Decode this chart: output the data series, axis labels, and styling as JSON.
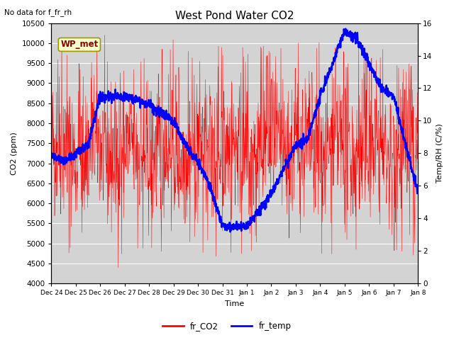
{
  "title": "West Pond Water CO2",
  "no_data_text": "No data for f_fr_rh",
  "xlabel": "Time",
  "ylabel_left": "CO2 (ppm)",
  "ylabel_right": "Temp/RH (C/%)",
  "ylim_left": [
    4000,
    10500
  ],
  "ylim_right": [
    0,
    16
  ],
  "yticks_left": [
    4000,
    4500,
    5000,
    5500,
    6000,
    6500,
    7000,
    7500,
    8000,
    8500,
    9000,
    9500,
    10000,
    10500
  ],
  "yticks_right": [
    0,
    2,
    4,
    6,
    8,
    10,
    12,
    14,
    16
  ],
  "legend_labels": [
    "fr_CO2",
    "fr_temp"
  ],
  "legend_colors": [
    "red",
    "blue"
  ],
  "wp_met_label": "WP_met",
  "plot_bg_color": "#d3d3d3",
  "num_days": 15,
  "x_tick_labels": [
    "Dec 24",
    "Dec 25",
    "Dec 26",
    "Dec 27",
    "Dec 28",
    "Dec 29",
    "Dec 30",
    "Dec 31",
    "Jan 1",
    "Jan 2",
    "Jan 3",
    "Jan 4",
    "Jan 5",
    "Jan 6",
    "Jan 7",
    "Jan 8"
  ],
  "seed": 42
}
